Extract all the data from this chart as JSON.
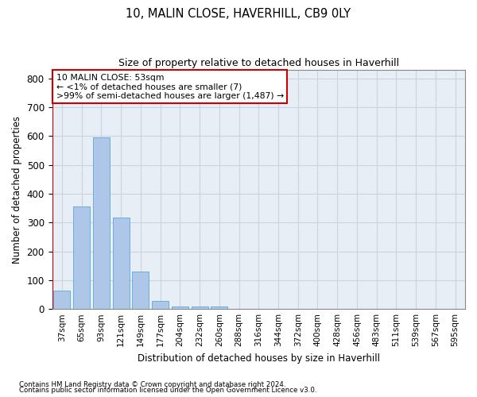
{
  "title1": "10, MALIN CLOSE, HAVERHILL, CB9 0LY",
  "title2": "Size of property relative to detached houses in Haverhill",
  "xlabel": "Distribution of detached houses by size in Haverhill",
  "ylabel": "Number of detached properties",
  "bar_labels": [
    "37sqm",
    "65sqm",
    "93sqm",
    "121sqm",
    "149sqm",
    "177sqm",
    "204sqm",
    "232sqm",
    "260sqm",
    "288sqm",
    "316sqm",
    "344sqm",
    "372sqm",
    "400sqm",
    "428sqm",
    "456sqm",
    "483sqm",
    "511sqm",
    "539sqm",
    "567sqm",
    "595sqm"
  ],
  "bar_values": [
    65,
    355,
    595,
    318,
    130,
    28,
    10,
    10,
    10,
    0,
    0,
    0,
    0,
    0,
    0,
    0,
    0,
    0,
    0,
    0,
    0
  ],
  "bar_color": "#aec6e8",
  "bar_edge_color": "#6baed6",
  "annotation_box_text": "10 MALIN CLOSE: 53sqm\n← <1% of detached houses are smaller (7)\n>99% of semi-detached houses are larger (1,487) →",
  "vline_color": "#cc0000",
  "ylim": [
    0,
    830
  ],
  "yticks": [
    0,
    100,
    200,
    300,
    400,
    500,
    600,
    700,
    800
  ],
  "grid_color": "#c8d4e0",
  "bg_color": "#e8eef5",
  "footnote1": "Contains HM Land Registry data © Crown copyright and database right 2024.",
  "footnote2": "Contains public sector information licensed under the Open Government Licence v3.0."
}
